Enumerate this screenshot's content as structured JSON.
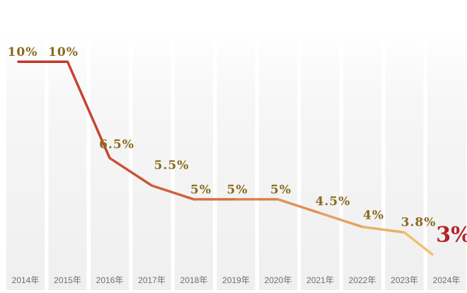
{
  "chart_data": {
    "type": "line",
    "categories": [
      "2014年",
      "2015年",
      "2016年",
      "2017年",
      "2018年",
      "2019年",
      "2020年",
      "2021年",
      "2022年",
      "2023年",
      "2024年"
    ],
    "values": [
      10,
      10,
      6.5,
      5.5,
      5,
      5,
      5,
      4.5,
      4,
      3.8,
      3
    ],
    "data_labels": [
      "10%",
      "10%",
      "6.5%",
      "5.5%",
      "5%",
      "5%",
      "5%",
      "4.5%",
      "4%",
      "3.8%",
      "3%"
    ],
    "highlight_index": 10,
    "ylim": [
      2.6,
      10.7
    ],
    "grid": false,
    "legend": "none",
    "colors": {
      "line_start": "#c0392b",
      "line_end": "#f0c26e",
      "label": "#8a6a1c",
      "highlight_label": "#b3242a",
      "column_band": "#f1f1f1",
      "axis_text": "#6f6f6f"
    }
  }
}
